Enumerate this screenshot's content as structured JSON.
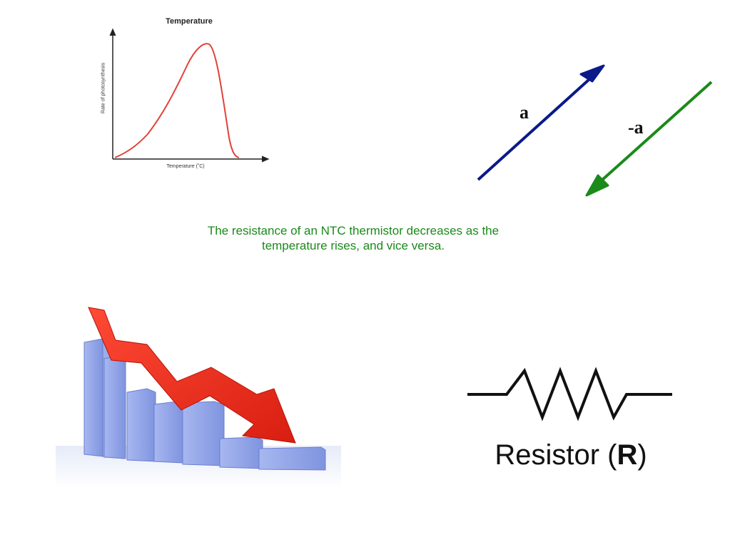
{
  "graph": {
    "title": "Temperature",
    "xlabel": "Temperature (˚C)",
    "ylabel": "Rate of photosynthesis",
    "curve_color": "#e0423a"
  },
  "vectors": {
    "a_label": "a",
    "neg_a_label": "-a",
    "a_color": "#0a1a8a",
    "neg_a_color": "#1a8a1a"
  },
  "caption": {
    "text": "The resistance of an NTC thermistor decreases as the temperature rises, and vice versa.",
    "color": "#1a8a1a"
  },
  "decline_image": {
    "bar_color": "#8fa3e8",
    "arrow_color": "#e52a1a"
  },
  "resistor": {
    "label_prefix": "Resistor (",
    "label_symbol": "R",
    "label_suffix": ")"
  }
}
